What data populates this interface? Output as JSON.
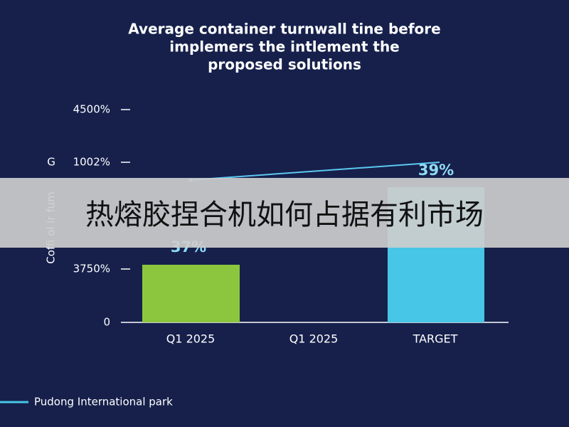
{
  "title": [
    "Average container turnwall tine before",
    "implemers the intlement the",
    "proposed solutions"
  ],
  "y_axis_title": "Coffi ol ir fum",
  "y_axis_symbol": "G",
  "y_labels": [
    "4500%",
    "1002%",
    "3750%",
    "0"
  ],
  "categories": [
    "Q1 2025",
    "Q1 2025",
    "TARGET"
  ],
  "bar_labels": [
    "37%",
    "39%"
  ],
  "legend": "Pudong International park",
  "banner": "热熔胶捏合机如何占据有利市场"
}
